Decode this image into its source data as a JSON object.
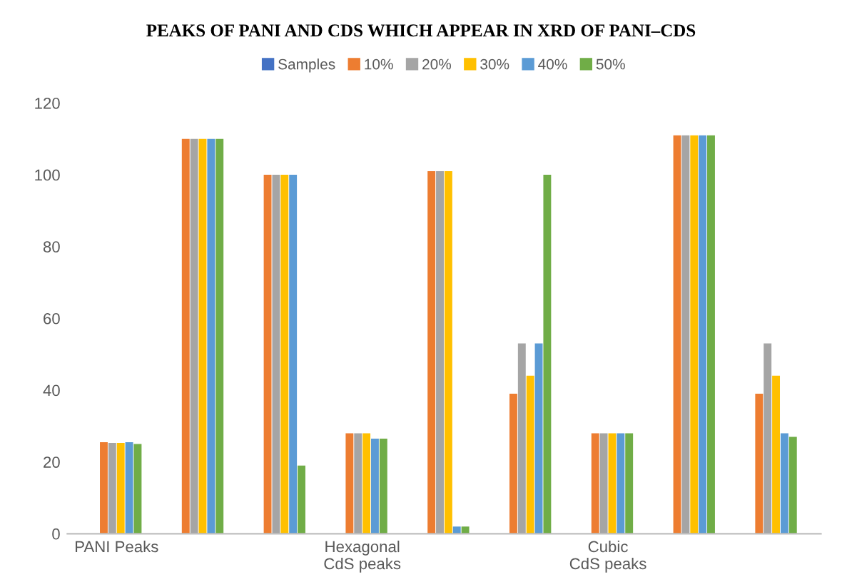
{
  "chart_data": {
    "type": "bar",
    "title": "PEAKS OF PANI AND CDS WHICH APPEAR IN XRD OF PANI–CDS",
    "categories": [
      "PANI Peaks",
      null,
      null,
      "Hexagonal CdS peaks",
      null,
      null,
      "Cubic CdS peaks",
      null,
      null
    ],
    "series": [
      {
        "name": "Samples",
        "color": "#4472c4",
        "values": [
          null,
          null,
          null,
          null,
          null,
          null,
          null,
          null,
          null
        ]
      },
      {
        "name": "10%",
        "color": "#ed7d31",
        "values": [
          25.5,
          110,
          100,
          28,
          101,
          39,
          28,
          111,
          39
        ]
      },
      {
        "name": "20%",
        "color": "#a5a5a5",
        "values": [
          25.3,
          110,
          100,
          28,
          101,
          53,
          28,
          111,
          53
        ]
      },
      {
        "name": "30%",
        "color": "#ffc000",
        "values": [
          25.3,
          110,
          100,
          28,
          101,
          44,
          28,
          111,
          44
        ]
      },
      {
        "name": "40%",
        "color": "#5b9bd5",
        "values": [
          25.5,
          110,
          100,
          26.5,
          2,
          53,
          28,
          111,
          28
        ]
      },
      {
        "name": "50%",
        "color": "#70ad47",
        "values": [
          25,
          110,
          19,
          26.5,
          2,
          100,
          28,
          111,
          27
        ]
      }
    ],
    "ylim": [
      0,
      120
    ],
    "yticks": [
      0,
      20,
      40,
      60,
      80,
      100,
      120
    ],
    "grid": false,
    "legend": "top"
  }
}
